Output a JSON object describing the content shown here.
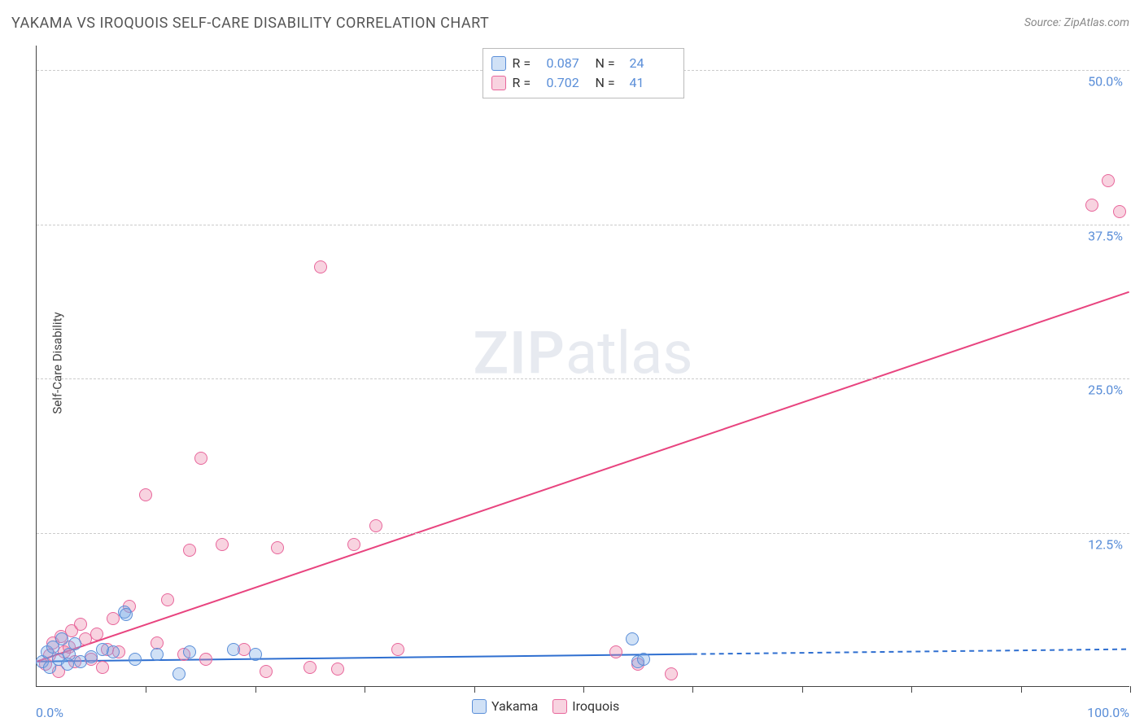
{
  "title": "YAKAMA VS IROQUOIS SELF-CARE DISABILITY CORRELATION CHART",
  "source": "Source: ZipAtlas.com",
  "y_axis_label": "Self-Care Disability",
  "watermark_zip": "ZIP",
  "watermark_atlas": "atlas",
  "chart": {
    "type": "scatter",
    "xlim": [
      0,
      100
    ],
    "ylim": [
      0,
      52
    ],
    "background_color": "#ffffff",
    "grid_color": "#cccccc",
    "axis_color": "#444444",
    "tick_color": "#5a8ed8",
    "y_gridlines": [
      12.5,
      25.0,
      37.5,
      50.0
    ],
    "y_tick_labels": [
      "12.5%",
      "25.0%",
      "37.5%",
      "50.0%"
    ],
    "x_minor_ticks": [
      10,
      20,
      30,
      40,
      50,
      60,
      70,
      80,
      90,
      100
    ],
    "x_min_label": "0.0%",
    "x_max_label": "100.0%",
    "marker_radius": 8,
    "series": [
      {
        "name": "Yakama",
        "color_fill": "rgba(120,170,230,0.35)",
        "color_stroke": "#5a8ed8",
        "r_value": "0.087",
        "n_value": "24",
        "trend": {
          "x1": 0,
          "y1": 2.0,
          "x2": 100,
          "y2": 3.0,
          "solid_until_x": 60,
          "color": "#2f6fd0",
          "width": 2
        },
        "points": [
          [
            0.5,
            2.0
          ],
          [
            1.0,
            2.8
          ],
          [
            1.2,
            1.5
          ],
          [
            1.5,
            3.2
          ],
          [
            2.0,
            2.2
          ],
          [
            2.3,
            3.8
          ],
          [
            2.8,
            1.8
          ],
          [
            3.0,
            2.6
          ],
          [
            3.5,
            3.4
          ],
          [
            4.0,
            2.0
          ],
          [
            5.0,
            2.4
          ],
          [
            6.0,
            3.0
          ],
          [
            7.0,
            2.8
          ],
          [
            8.0,
            6.0
          ],
          [
            8.2,
            5.8
          ],
          [
            9.0,
            2.2
          ],
          [
            11.0,
            2.6
          ],
          [
            13.0,
            1.0
          ],
          [
            14.0,
            2.8
          ],
          [
            18.0,
            3.0
          ],
          [
            20.0,
            2.6
          ],
          [
            54.5,
            3.8
          ],
          [
            55.0,
            2.0
          ],
          [
            55.5,
            2.2
          ]
        ]
      },
      {
        "name": "Iroquois",
        "color_fill": "rgba(235,130,165,0.35)",
        "color_stroke": "#e8669b",
        "r_value": "0.702",
        "n_value": "41",
        "trend": {
          "x1": 0,
          "y1": 2.0,
          "x2": 100,
          "y2": 32.0,
          "solid_until_x": 100,
          "color": "#e8447f",
          "width": 2
        },
        "points": [
          [
            0.8,
            1.8
          ],
          [
            1.2,
            2.5
          ],
          [
            1.5,
            3.5
          ],
          [
            2.0,
            1.2
          ],
          [
            2.2,
            4.0
          ],
          [
            2.5,
            2.8
          ],
          [
            3.0,
            3.2
          ],
          [
            3.2,
            4.5
          ],
          [
            3.5,
            2.0
          ],
          [
            4.0,
            5.0
          ],
          [
            4.5,
            3.8
          ],
          [
            5.0,
            2.2
          ],
          [
            5.5,
            4.2
          ],
          [
            6.0,
            1.5
          ],
          [
            6.5,
            3.0
          ],
          [
            7.0,
            5.5
          ],
          [
            7.5,
            2.8
          ],
          [
            8.5,
            6.5
          ],
          [
            10.0,
            15.5
          ],
          [
            11.0,
            3.5
          ],
          [
            12.0,
            7.0
          ],
          [
            13.5,
            2.6
          ],
          [
            14.0,
            11.0
          ],
          [
            15.0,
            18.5
          ],
          [
            15.5,
            2.2
          ],
          [
            17.0,
            11.5
          ],
          [
            19.0,
            3.0
          ],
          [
            21.0,
            1.2
          ],
          [
            22.0,
            11.2
          ],
          [
            25.0,
            1.5
          ],
          [
            26.0,
            34.0
          ],
          [
            27.5,
            1.4
          ],
          [
            29.0,
            11.5
          ],
          [
            31.0,
            13.0
          ],
          [
            33.0,
            3.0
          ],
          [
            53.0,
            2.8
          ],
          [
            55.0,
            1.8
          ],
          [
            58.0,
            1.0
          ],
          [
            96.5,
            39.0
          ],
          [
            98.0,
            41.0
          ],
          [
            99.0,
            38.5
          ]
        ]
      }
    ]
  },
  "legend_bottom": {
    "items": [
      {
        "label": "Yakama",
        "fill": "rgba(120,170,230,0.35)",
        "stroke": "#5a8ed8"
      },
      {
        "label": "Iroquois",
        "fill": "rgba(235,130,165,0.35)",
        "stroke": "#e8669b"
      }
    ]
  }
}
